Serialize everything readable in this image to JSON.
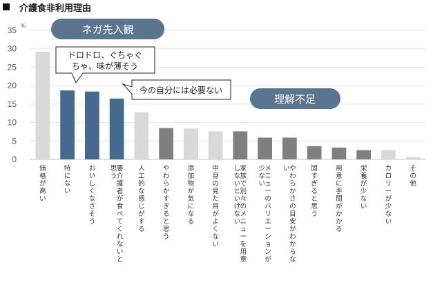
{
  "chart_data": {
    "type": "bar",
    "title": "介護食非利用理由",
    "unit": "%",
    "ylim": [
      0,
      35
    ],
    "yticks": [
      "0",
      "5",
      "10",
      "15",
      "20",
      "25",
      "30",
      "35"
    ],
    "grid": true,
    "categories": [
      "価格が高い",
      "特にない",
      "おいしくなさそう",
      "要介護者が食べてくれないと思う",
      "人工的な感じがする",
      "やわらかすぎると思う",
      "添加物が気になる",
      "中身の見た目がよくない",
      "家族で別々のメニューを用意しないといけない",
      "メニューのバリエーションが少ない",
      "やわらかさの目安がわからない",
      "固すぎると思う",
      "用意に手間がかかる",
      "栄養が少ない",
      "カロリーが少ない",
      "その他"
    ],
    "values": [
      29.2,
      18.7,
      18.4,
      16.5,
      12.8,
      8.5,
      8.4,
      7.6,
      7.6,
      5.9,
      5.9,
      3.6,
      3.2,
      2.5,
      2.5,
      0.6
    ],
    "groups": [
      "other",
      "preconception",
      "preconception",
      "preconception",
      "other",
      "misunderstanding",
      "other",
      "other",
      "misunderstanding",
      "misunderstanding",
      "misunderstanding",
      "misunderstanding",
      "misunderstanding",
      "misunderstanding",
      "other",
      "other"
    ],
    "colors": {
      "preconception": "#466a8f",
      "misunderstanding": "#7f7f7f",
      "other": "#d9d9d9",
      "pill": "#5b7590",
      "axis": "#bfbfbf",
      "grid": "#e6e6e6"
    },
    "annotations": {
      "preconception_label": "ネガ先入観",
      "misunderstanding_label": "理解不足",
      "callout_taste": [
        "ドロドロ、ぐちゃぐ",
        "ちゃ、味が薄そう"
      ],
      "callout_unneeded": "今の自分には必要ない"
    }
  }
}
